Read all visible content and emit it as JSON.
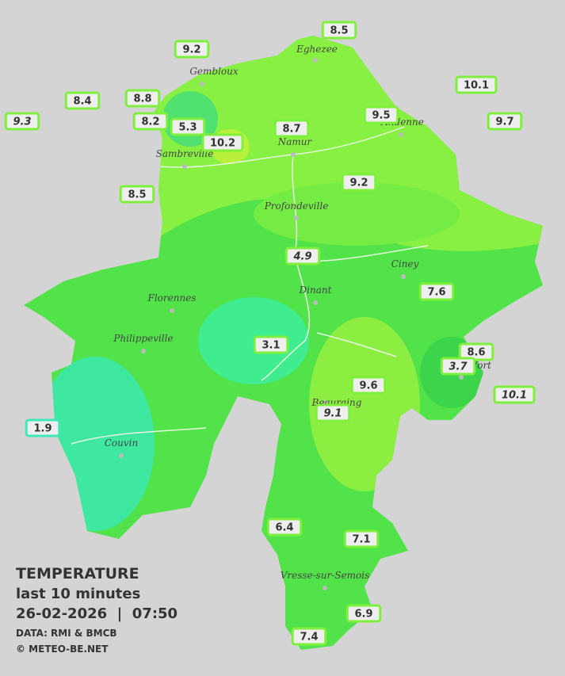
{
  "caption": {
    "title": "TEMPERATURE",
    "subtitle": "last 10 minutes",
    "datetime": "26-02-2026  |  07:50",
    "source": "DATA: RMI & BMCB",
    "credit": "© METEO-BE.NET"
  },
  "cities": [
    "Gembloux",
    "Eghezee",
    "Andenne",
    "Namur",
    "Sambreville",
    "Profondeville",
    "Ciney",
    "Dinant",
    "Florennes",
    "Philippeville",
    "Couvin",
    "Vresse-sur-Semois",
    "Rochefort",
    "Beauraing"
  ],
  "stations": [
    {
      "value": 9.2
    },
    {
      "value": 8.5
    },
    {
      "value": 10.1
    },
    {
      "value": 8.4
    },
    {
      "value": 8.8
    },
    {
      "value": 9.3,
      "italic": true
    },
    {
      "value": 8.2
    },
    {
      "value": 5.3
    },
    {
      "value": 10.2
    },
    {
      "value": 8.7
    },
    {
      "value": 9.5
    },
    {
      "value": 9.7
    },
    {
      "value": 8.5
    },
    {
      "value": 9.2
    },
    {
      "value": 4.9,
      "italic": true
    },
    {
      "value": 7.6
    },
    {
      "value": 3.1
    },
    {
      "value": 8.6
    },
    {
      "value": 3.7,
      "italic": true
    },
    {
      "value": 10.1,
      "italic": true
    },
    {
      "value": 9.6
    },
    {
      "value": 9.1,
      "italic": true
    },
    {
      "value": 1.9,
      "color": "#3ee8b8"
    },
    {
      "value": 6.4
    },
    {
      "value": 7.1
    },
    {
      "value": 6.9
    },
    {
      "value": 7.4
    }
  ],
  "station_color": "#7ef03c"
}
